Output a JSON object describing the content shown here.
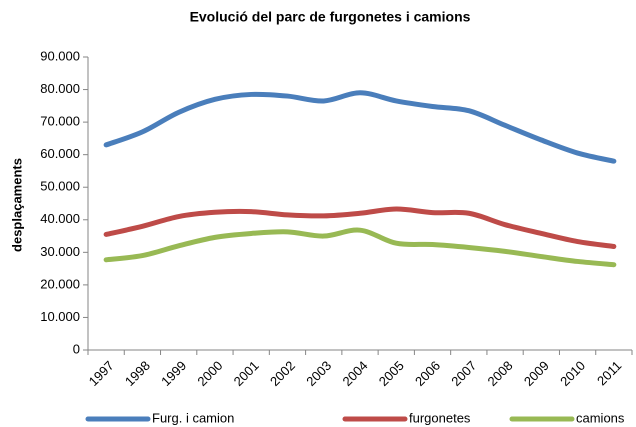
{
  "chart_data": {
    "type": "line",
    "title": "Evolució del parc de furgonetes i camions",
    "y_label": "desplaçaments",
    "categories": [
      "1997",
      "1998",
      "1999",
      "2000",
      "2001",
      "2002",
      "2003",
      "2004",
      "2005",
      "2006",
      "2007",
      "2008",
      "2009",
      "2010",
      "2011"
    ],
    "series": [
      {
        "name": "Furg. i camion",
        "color": "#4a7ebb",
        "values": [
          63000,
          67000,
          73000,
          77000,
          78500,
          78000,
          76500,
          79000,
          76500,
          74800,
          73500,
          69000,
          64500,
          60500,
          58000
        ]
      },
      {
        "name": "furgonetes",
        "color": "#be4b48",
        "values": [
          35500,
          38000,
          41000,
          42300,
          42500,
          41500,
          41200,
          42000,
          43300,
          42200,
          42000,
          38500,
          35800,
          33300,
          31800
        ]
      },
      {
        "name": "camions",
        "color": "#98b954",
        "values": [
          27700,
          29000,
          32000,
          34600,
          35800,
          36300,
          35000,
          36800,
          32800,
          32400,
          31500,
          30300,
          28700,
          27200,
          26200
        ]
      }
    ],
    "ylim": [
      0,
      90000
    ],
    "yticks": [
      0,
      {
        "value": 10000,
        "label": "10.000"
      },
      {
        "value": 20000,
        "label": "20.000"
      },
      {
        "value": 30000,
        "label": "30.000"
      },
      {
        "value": 40000,
        "label": "40.000"
      },
      {
        "value": 50000,
        "label": "50.000"
      },
      {
        "value": 60000,
        "label": "60.000"
      },
      {
        "value": 70000,
        "label": "70.000"
      },
      {
        "value": 80000,
        "label": "80.000"
      },
      {
        "value": 90000,
        "label": "90.000"
      }
    ],
    "grid": false,
    "legend": "bottom"
  }
}
